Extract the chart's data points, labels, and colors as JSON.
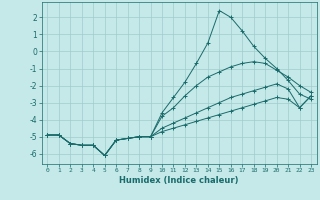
{
  "xlabel": "Humidex (Indice chaleur)",
  "background_color": "#c5e8e8",
  "grid_color": "#a0cccc",
  "line_color": "#1a6b6b",
  "xlim": [
    -0.5,
    23.5
  ],
  "ylim": [
    -6.6,
    2.9
  ],
  "yticks": [
    2,
    1,
    0,
    -1,
    -2,
    -3,
    -4,
    -5,
    -6
  ],
  "xticks": [
    0,
    1,
    2,
    3,
    4,
    5,
    6,
    7,
    8,
    9,
    10,
    11,
    12,
    13,
    14,
    15,
    16,
    17,
    18,
    19,
    20,
    21,
    22,
    23
  ],
  "series": [
    {
      "x": [
        0,
        1,
        2,
        3,
        4,
        5,
        6,
        7,
        8,
        9,
        10,
        11,
        12,
        13,
        14,
        15,
        16,
        17,
        18,
        19,
        20,
        21,
        22,
        23
      ],
      "y": [
        -4.9,
        -4.9,
        -5.4,
        -5.5,
        -5.5,
        -6.1,
        -5.2,
        -5.1,
        -5.0,
        -5.0,
        -4.7,
        -4.5,
        -4.3,
        -4.1,
        -3.9,
        -3.7,
        -3.5,
        -3.3,
        -3.1,
        -2.9,
        -2.7,
        -2.8,
        -3.3,
        -2.6
      ]
    },
    {
      "x": [
        0,
        1,
        2,
        3,
        4,
        5,
        6,
        7,
        8,
        9,
        10,
        11,
        12,
        13,
        14,
        15,
        16,
        17,
        18,
        19,
        20,
        21,
        22,
        23
      ],
      "y": [
        -4.9,
        -4.9,
        -5.4,
        -5.5,
        -5.5,
        -6.1,
        -5.2,
        -5.1,
        -5.0,
        -5.0,
        -4.5,
        -4.2,
        -3.9,
        -3.6,
        -3.3,
        -3.0,
        -2.7,
        -2.5,
        -2.3,
        -2.1,
        -1.9,
        -2.2,
        -3.3,
        -2.6
      ]
    },
    {
      "x": [
        0,
        1,
        2,
        3,
        4,
        5,
        6,
        7,
        8,
        9,
        10,
        11,
        12,
        13,
        14,
        15,
        16,
        17,
        18,
        19,
        20,
        21,
        22,
        23
      ],
      "y": [
        -4.9,
        -4.9,
        -5.4,
        -5.5,
        -5.5,
        -6.1,
        -5.2,
        -5.1,
        -5.0,
        -5.0,
        -3.8,
        -3.3,
        -2.6,
        -2.0,
        -1.5,
        -1.2,
        -0.9,
        -0.7,
        -0.6,
        -0.7,
        -1.1,
        -1.5,
        -2.0,
        -2.4
      ]
    },
    {
      "x": [
        0,
        1,
        2,
        3,
        4,
        5,
        6,
        7,
        8,
        9,
        10,
        11,
        12,
        13,
        14,
        15,
        16,
        17,
        18,
        19,
        20,
        21,
        22,
        23
      ],
      "y": [
        -4.9,
        -4.9,
        -5.4,
        -5.5,
        -5.5,
        -6.1,
        -5.2,
        -5.1,
        -5.0,
        -5.0,
        -3.6,
        -2.7,
        -1.8,
        -0.7,
        0.5,
        2.4,
        2.0,
        1.2,
        0.3,
        -0.4,
        -1.0,
        -1.7,
        -2.5,
        -2.8
      ]
    }
  ]
}
